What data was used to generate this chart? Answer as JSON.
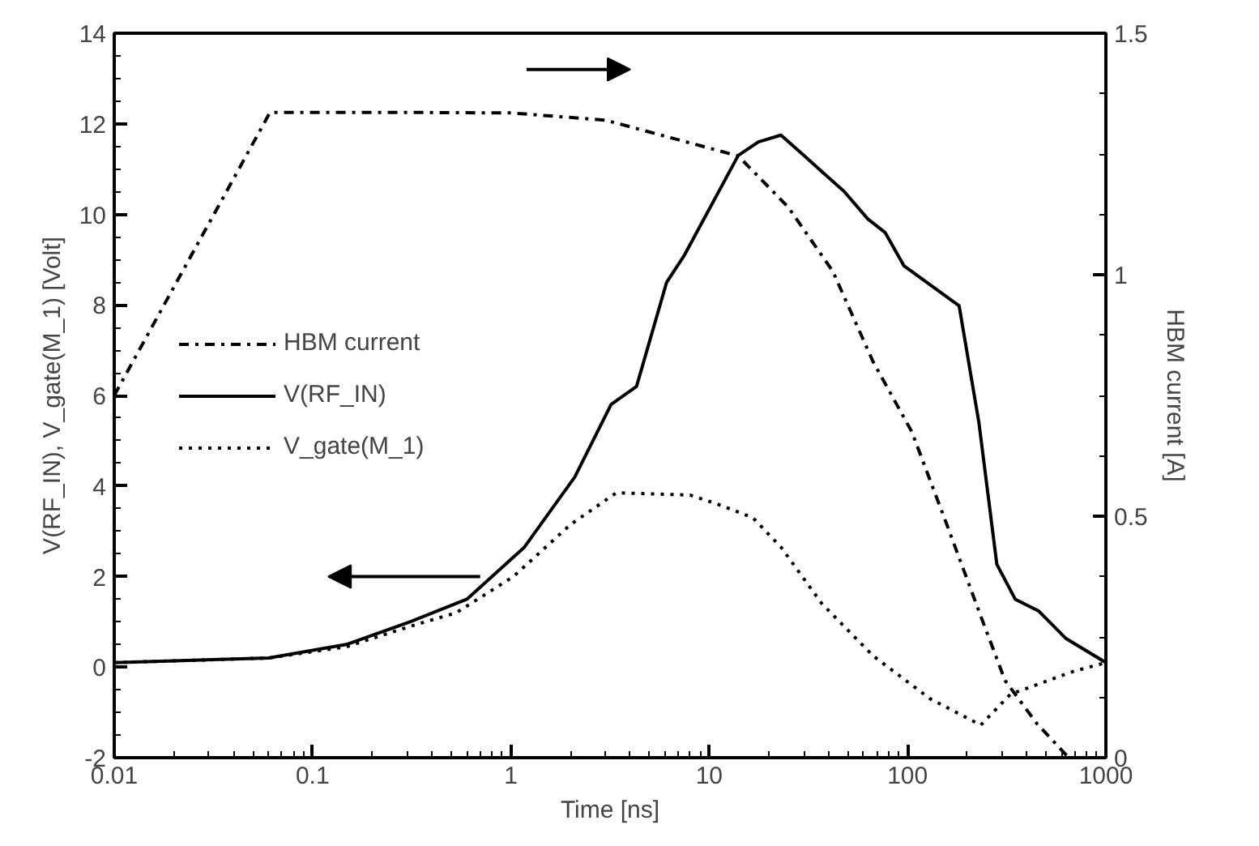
{
  "chart_data": {
    "type": "line",
    "xlabel": "Time [ns]",
    "ylabel": "V(RF_IN), V_gate(M_1) [Volt]",
    "y2label": "HBM current [A]",
    "log": "x",
    "xlim": [
      0.01,
      1000
    ],
    "xticks": [
      0.01,
      0.1,
      1,
      10,
      100,
      1000
    ],
    "ylim": [
      -2,
      14
    ],
    "yticks": [
      -2,
      0,
      2,
      4,
      6,
      8,
      10,
      12,
      14
    ],
    "y2lim": [
      0,
      1.5
    ],
    "y2ticks": [
      0,
      0.5,
      1,
      1.5
    ],
    "grid": false,
    "legend": "left",
    "series": [
      {
        "name": "HBM current",
        "color": "#000000",
        "axis": "y2",
        "line_style": "dashdot",
        "x": [
          0.01,
          0.061,
          0.3,
          1,
          3,
          14,
          25,
          42,
          67,
          105,
          158,
          234,
          310,
          450,
          650
        ],
        "values": [
          0.75,
          1.336,
          1.336,
          1.335,
          1.32,
          1.246,
          1.14,
          1.007,
          0.82,
          0.675,
          0.482,
          0.293,
          0.16,
          0.07,
          0.0
        ]
      },
      {
        "name": "V(RF_IN)",
        "color": "#000000",
        "line_style": "solid",
        "x": [
          0.01,
          0.06,
          0.148,
          0.31,
          0.6,
          1.17,
          2.1,
          3.2,
          4.3,
          6.1,
          7.5,
          14,
          17.7,
          23,
          30,
          48,
          63,
          77,
          96,
          182,
          229,
          282,
          349,
          458,
          630,
          1000
        ],
        "values": [
          0.1,
          0.2,
          0.5,
          1.0,
          1.5,
          2.65,
          4.2,
          5.8,
          6.2,
          8.5,
          9.1,
          11.3,
          11.6,
          11.75,
          11.3,
          10.5,
          9.9,
          9.6,
          8.86,
          7.98,
          5.4,
          2.27,
          1.5,
          1.24,
          0.63,
          0.1
        ]
      },
      {
        "name": "V_gate(M_1)",
        "color": "#000000",
        "line_style": "dotted",
        "x": [
          0.01,
          0.06,
          0.148,
          0.31,
          0.53,
          1.03,
          2.0,
          3.4,
          8,
          11,
          16.6,
          23,
          37,
          67,
          130,
          234,
          330,
          680,
          1000
        ],
        "values": [
          0.1,
          0.2,
          0.45,
          0.9,
          1.2,
          2.0,
          3.15,
          3.85,
          3.8,
          3.6,
          3.3,
          2.65,
          1.4,
          0.25,
          -0.7,
          -1.28,
          -0.6,
          -0.1,
          0.1
        ]
      }
    ]
  }
}
